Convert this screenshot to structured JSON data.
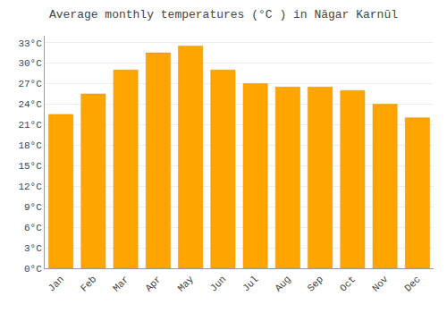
{
  "chart_data": {
    "type": "bar",
    "title": "Average monthly temperatures (°C ) in Nāgar Karnūl",
    "categories": [
      "Jan",
      "Feb",
      "Mar",
      "Apr",
      "May",
      "Jun",
      "Jul",
      "Aug",
      "Sep",
      "Oct",
      "Nov",
      "Dec"
    ],
    "values": [
      22.5,
      25.5,
      29.0,
      31.5,
      32.5,
      29.0,
      27.0,
      26.5,
      26.5,
      26.0,
      24.0,
      22.0
    ],
    "color": "#FFA500",
    "ylim": [
      0,
      34
    ],
    "yticks": [
      {
        "value": 0,
        "label": "0°C"
      },
      {
        "value": 3,
        "label": "3°C"
      },
      {
        "value": 6,
        "label": "6°C"
      },
      {
        "value": 9,
        "label": "9°C"
      },
      {
        "value": 12,
        "label": "12°C"
      },
      {
        "value": 15,
        "label": "15°C"
      },
      {
        "value": 18,
        "label": "18°C"
      },
      {
        "value": 21,
        "label": "21°C"
      },
      {
        "value": 24,
        "label": "24°C"
      },
      {
        "value": 27,
        "label": "27°C"
      },
      {
        "value": 30,
        "label": "30°C"
      },
      {
        "value": 33,
        "label": "33°C"
      }
    ],
    "grid": true
  }
}
